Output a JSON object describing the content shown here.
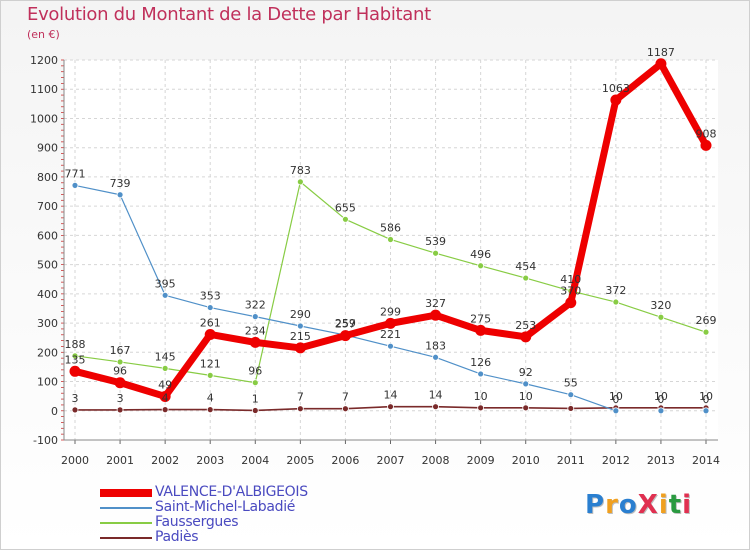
{
  "title": "Evolution du Montant de la Dette par Habitant",
  "subtitle": "(en €)",
  "logo": {
    "text": "ProXiti",
    "letters": [
      "P",
      "r",
      "o",
      "X",
      "i",
      "t",
      "i"
    ],
    "colors": [
      "#2a7fd0",
      "#f0a020",
      "#2a7fd0",
      "#e03050",
      "#f0a020",
      "#2a9a40",
      "#e03050"
    ]
  },
  "chart_data": {
    "type": "line",
    "title": "Evolution du Montant de la Dette par Habitant",
    "ylabel": "(en €)",
    "x": [
      "2000",
      "2001",
      "2002",
      "2003",
      "2004",
      "2005",
      "2006",
      "2007",
      "2008",
      "2009",
      "2010",
      "2011",
      "2012",
      "2013",
      "2014"
    ],
    "ylim": [
      -100,
      1200
    ],
    "yticks": [
      -100,
      0,
      100,
      200,
      300,
      400,
      500,
      600,
      700,
      800,
      900,
      1000,
      1100,
      1200
    ],
    "grid": true,
    "legend_position": "bottom-left",
    "series": [
      {
        "name": "VALENCE-D'ALBIGEOIS",
        "color": "#ee0000",
        "values": [
          135,
          96,
          49,
          261,
          234,
          215,
          257,
          299,
          327,
          275,
          253,
          370,
          1063,
          1187,
          908
        ],
        "labels": [
          "135",
          "96",
          "49",
          "261",
          "234",
          "215",
          "257",
          "299",
          "327",
          "275",
          "253",
          "370",
          "1063",
          "1187",
          "908"
        ]
      },
      {
        "name": "Saint-Michel-Labadié",
        "color": "#5090c8",
        "values": [
          771,
          739,
          395,
          353,
          322,
          290,
          259,
          221,
          183,
          126,
          92,
          55,
          0,
          0,
          0
        ],
        "labels": [
          "771",
          "739",
          "395",
          "353",
          "322",
          "290",
          "259",
          "221",
          "183",
          "126",
          "92",
          "55",
          "0",
          "0",
          "0"
        ]
      },
      {
        "name": "Faussergues",
        "color": "#88cc44",
        "values": [
          188,
          167,
          145,
          121,
          96,
          783,
          655,
          586,
          539,
          496,
          454,
          410,
          372,
          320,
          269
        ],
        "labels": [
          "188",
          "167",
          "145",
          "121",
          "96",
          "783",
          "655",
          "586",
          "539",
          "496",
          "454",
          "410",
          "372",
          "320",
          "269"
        ]
      },
      {
        "name": "Padiès",
        "color": "#7a2a2a",
        "values": [
          3,
          3,
          4,
          4,
          1,
          7,
          7,
          14,
          14,
          10,
          10,
          8,
          10,
          10,
          10
        ],
        "labels": [
          "3",
          "3",
          "4",
          "4",
          "1",
          "7",
          "7",
          "14",
          "14",
          "10",
          "10",
          "",
          "10",
          "10",
          "10"
        ]
      }
    ]
  }
}
